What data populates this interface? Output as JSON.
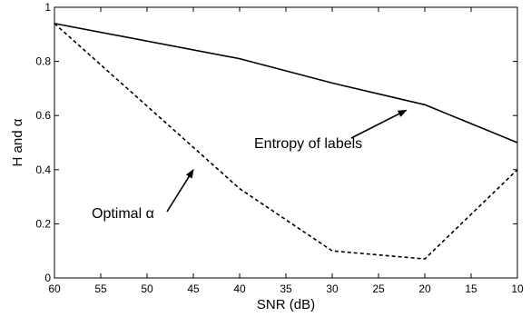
{
  "chart_data": {
    "type": "line",
    "xlabel": "SNR (dB)",
    "ylabel": "H and α",
    "xlim": [
      60,
      10
    ],
    "ylim": [
      0,
      1
    ],
    "x_reversed": true,
    "grid": false,
    "x_ticks": [
      "60",
      "55",
      "50",
      "45",
      "40",
      "35",
      "30",
      "25",
      "20",
      "15",
      "10"
    ],
    "y_ticks": [
      "0",
      "0.2",
      "0.4",
      "0.6",
      "0.8",
      "1"
    ],
    "series": [
      {
        "style": "solid",
        "x": [
          60,
          40,
          30,
          20,
          10
        ],
        "y": [
          0.94,
          0.81,
          0.72,
          0.64,
          0.5
        ]
      },
      {
        "style": "dashed",
        "x": [
          60,
          40,
          30,
          20,
          10
        ],
        "y": [
          0.94,
          0.33,
          0.1,
          0.07,
          0.4
        ]
      }
    ],
    "annotations": [
      {
        "text": "Entropy of labels",
        "arrow_to": {
          "x": 22,
          "y": 0.64
        }
      },
      {
        "text": "Optimal α",
        "arrow_to": {
          "x": 45,
          "y": 0.42
        }
      }
    ]
  }
}
